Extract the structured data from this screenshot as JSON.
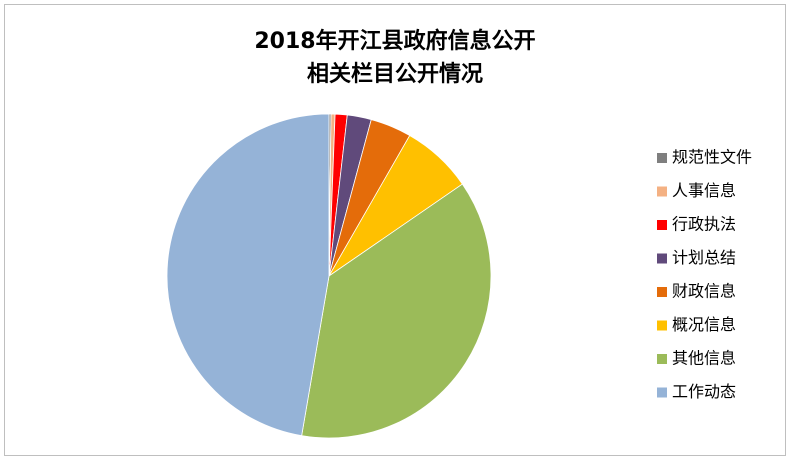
{
  "chart_data": {
    "type": "pie",
    "title": [
      "2018年开江县政府信息公开",
      "相关栏目公开情况"
    ],
    "categories": [
      "规范性文件",
      "人事信息",
      "行政执法",
      "计划总结",
      "财政信息",
      "概况信息",
      "其他信息",
      "工作动态"
    ],
    "values": [
      0.2,
      0.4,
      1.2,
      2.4,
      4.1,
      7.1,
      37.3,
      47.3
    ],
    "colors": [
      "#7f7f7f",
      "#f4b183",
      "#ff0000",
      "#604a7b",
      "#e46c0a",
      "#ffc000",
      "#9bbb59",
      "#95b3d7"
    ],
    "legend": "right"
  }
}
